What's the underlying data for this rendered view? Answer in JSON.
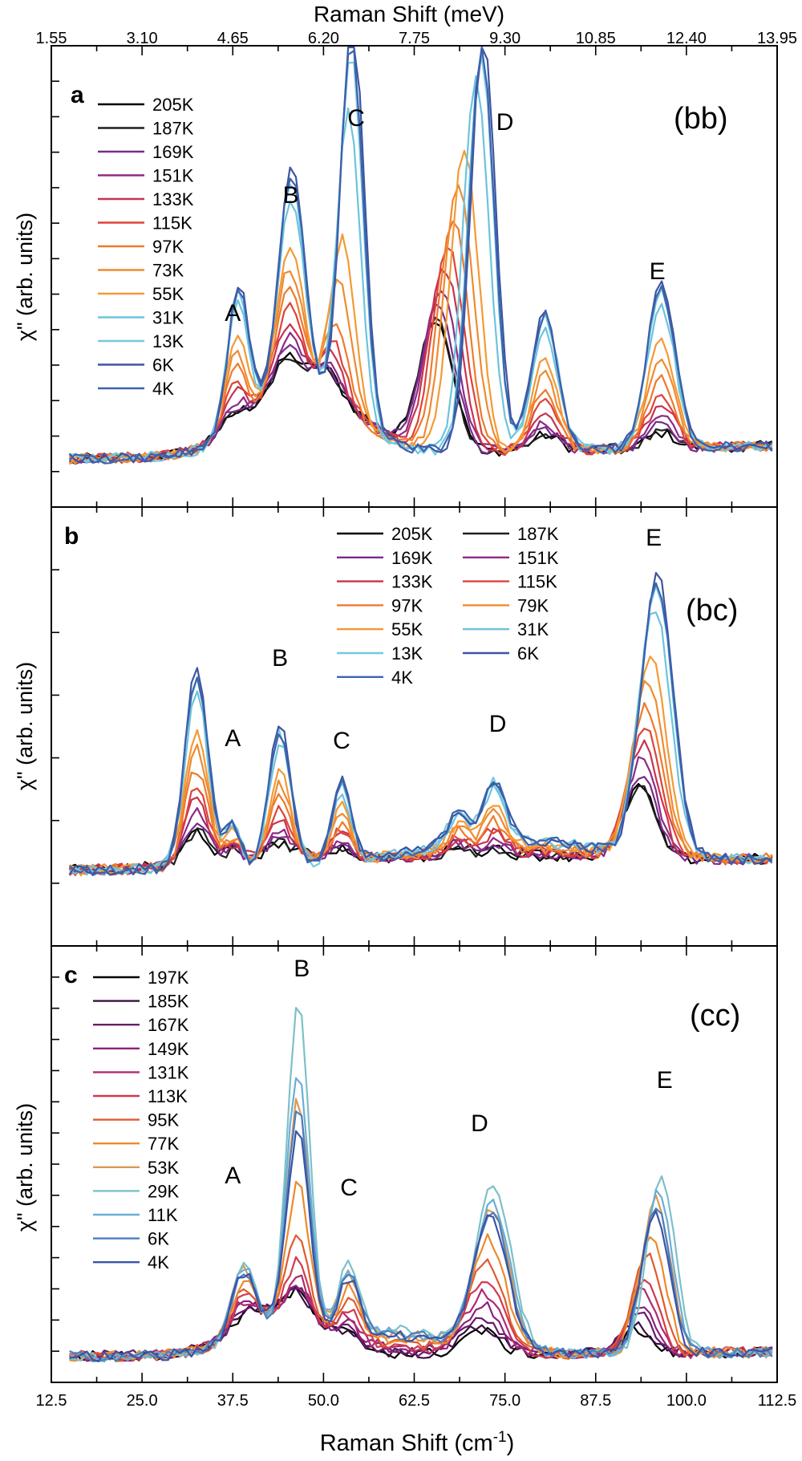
{
  "chart_data": {
    "type": "line",
    "top_axis": {
      "label": "Raman Shift (meV)",
      "ticks": [
        "1.55",
        "3.10",
        "4.65",
        "6.20",
        "7.75",
        "9.30",
        "10.85",
        "12.40",
        "13.95"
      ],
      "values": [
        12.5,
        25.0,
        37.5,
        50.0,
        62.5,
        75.0,
        87.5,
        100.0,
        112.5
      ]
    },
    "bottom_axis": {
      "label_main": "Raman Shift (cm",
      "label_sup": "-1",
      "label_end": ")",
      "ticks": [
        "12.5",
        "25.0",
        "37.5",
        "50.0",
        "62.5",
        "75.0",
        "87.5",
        "100.0",
        "112.5"
      ],
      "values": [
        12.5,
        25.0,
        37.5,
        50.0,
        62.5,
        75.0,
        87.5,
        100.0,
        112.5
      ],
      "xlim": [
        12.5,
        112.5
      ]
    },
    "panels": [
      {
        "id": "a",
        "letter": "a",
        "polarization": "(bb)",
        "ylabel": "χ\" (arb. units)",
        "legend_columns": 1,
        "series": [
          {
            "name": "205K",
            "color": "#000000",
            "t": 0.0
          },
          {
            "name": "187K",
            "color": "#1f1f1f",
            "t": 0.0
          },
          {
            "name": "169K",
            "color": "#7a2a8c",
            "t": 0.05
          },
          {
            "name": "151K",
            "color": "#8e2a85",
            "t": 0.1
          },
          {
            "name": "133K",
            "color": "#c8324f",
            "t": 0.18
          },
          {
            "name": "115K",
            "color": "#de4338",
            "t": 0.26
          },
          {
            "name": "97K",
            "color": "#ee7a2c",
            "t": 0.36
          },
          {
            "name": "73K",
            "color": "#ef8a30",
            "t": 0.48
          },
          {
            "name": "55K",
            "color": "#f39a35",
            "t": 0.6
          },
          {
            "name": "31K",
            "color": "#6ec3dc",
            "t": 0.85
          },
          {
            "name": "13K",
            "color": "#76c8e0",
            "t": 0.95
          },
          {
            "name": "6K",
            "color": "#3d55a0",
            "t": 1.0
          },
          {
            "name": "4K",
            "color": "#3b63ae",
            "t": 0.97
          }
        ],
        "peak_labels": [
          {
            "text": "A",
            "x": 37.5
          },
          {
            "text": "B",
            "x": 45.5
          },
          {
            "text": "C",
            "x": 54.5
          },
          {
            "text": "D",
            "x": 75.0
          },
          {
            "text": "E",
            "x": 96.0
          }
        ]
      },
      {
        "id": "b",
        "letter": "b",
        "polarization": "(bc)",
        "ylabel": "χ\" (arb. units)",
        "legend_columns": 2,
        "series": [
          {
            "name": "205K",
            "color": "#000000",
            "t": 0.0
          },
          {
            "name": "187K",
            "color": "#1f1f1f",
            "t": 0.0
          },
          {
            "name": "169K",
            "color": "#7a2a8c",
            "t": 0.06
          },
          {
            "name": "151K",
            "color": "#8e2a85",
            "t": 0.12
          },
          {
            "name": "133K",
            "color": "#c8324f",
            "t": 0.2
          },
          {
            "name": "115K",
            "color": "#de4338",
            "t": 0.28
          },
          {
            "name": "97K",
            "color": "#ee7a2c",
            "t": 0.38
          },
          {
            "name": "79K",
            "color": "#ef8a30",
            "t": 0.5
          },
          {
            "name": "55K",
            "color": "#f39a35",
            "t": 0.62
          },
          {
            "name": "31K",
            "color": "#6ec3dc",
            "t": 0.85
          },
          {
            "name": "13K",
            "color": "#76c8e0",
            "t": 0.95
          },
          {
            "name": "6K",
            "color": "#3d55a0",
            "t": 1.0
          },
          {
            "name": "4K",
            "color": "#3b63ae",
            "t": 0.97
          }
        ],
        "peak_labels": [
          {
            "text": "A",
            "x": 37.5
          },
          {
            "text": "B",
            "x": 44.0
          },
          {
            "text": "C",
            "x": 52.5
          },
          {
            "text": "D",
            "x": 74.0
          },
          {
            "text": "E",
            "x": 95.5
          }
        ]
      },
      {
        "id": "c",
        "letter": "c",
        "polarization": "(cc)",
        "ylabel": "χ\" (arb. units)",
        "legend_columns": 1,
        "series": [
          {
            "name": "197K",
            "color": "#000000",
            "t": 0.0
          },
          {
            "name": "185K",
            "color": "#3a1040",
            "t": 0.04
          },
          {
            "name": "167K",
            "color": "#6a1a6a",
            "t": 0.1
          },
          {
            "name": "149K",
            "color": "#8e2080",
            "t": 0.17
          },
          {
            "name": "131K",
            "color": "#b02a70",
            "t": 0.25
          },
          {
            "name": "113K",
            "color": "#d23a4c",
            "t": 0.35
          },
          {
            "name": "95K",
            "color": "#e05a2e",
            "t": 0.47
          },
          {
            "name": "77K",
            "color": "#ec8a2c",
            "t": 0.62
          },
          {
            "name": "53K",
            "color": "#d99a50",
            "t": 0.82
          },
          {
            "name": "29K",
            "color": "#7ec0c8",
            "t": 1.0
          },
          {
            "name": "11K",
            "color": "#6aaed6",
            "t": 0.88
          },
          {
            "name": "6K",
            "color": "#4a7fc0",
            "t": 0.8
          },
          {
            "name": "4K",
            "color": "#3b53a3",
            "t": 0.76
          }
        ],
        "peak_labels": [
          {
            "text": "A",
            "x": 37.5
          },
          {
            "text": "B",
            "x": 47.0
          },
          {
            "text": "C",
            "x": 53.5
          },
          {
            "text": "D",
            "x": 71.5
          },
          {
            "text": "E",
            "x": 97.0
          }
        ]
      }
    ]
  }
}
